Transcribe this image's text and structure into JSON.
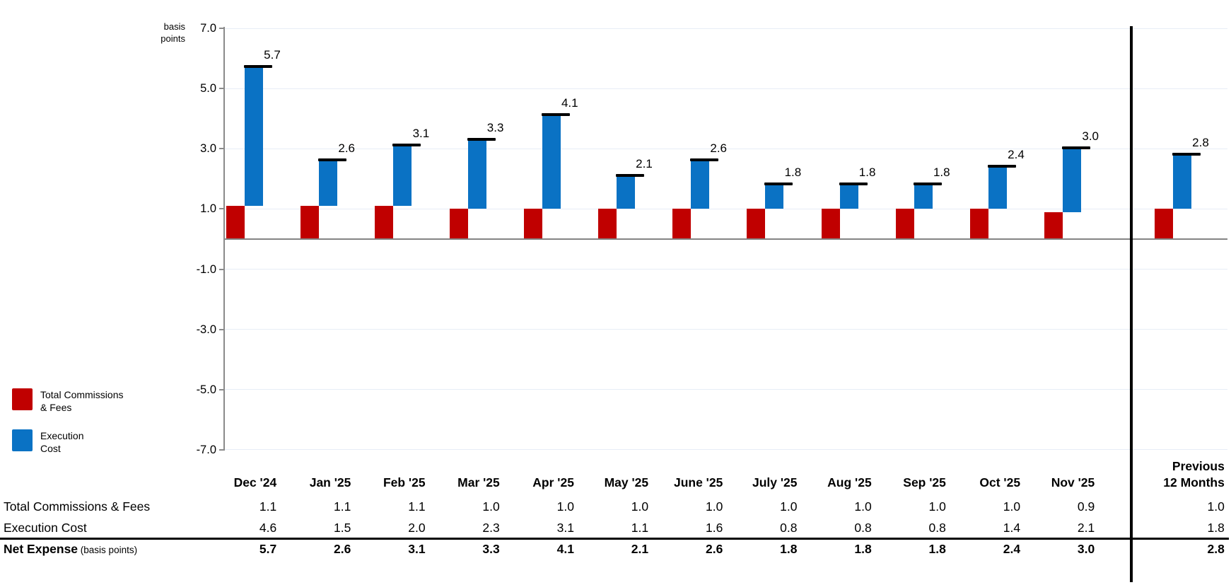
{
  "chart": {
    "unit_label_line1": "basis",
    "unit_label_line2": "points"
  },
  "legend": {
    "items": [
      {
        "line1": "Total Commissions",
        "line2": "& Fees",
        "color": "#c00000"
      },
      {
        "line1": "Execution",
        "line2": "Cost",
        "color": "#0a72c4"
      }
    ]
  },
  "chart_data": {
    "type": "bar",
    "subtype": "stacked-offset-columns-with-total-markers",
    "unit": "basis points",
    "categories": [
      "Dec '24",
      "Jan '25",
      "Feb '25",
      "Mar '25",
      "Apr '25",
      "May '25",
      "June '25",
      "July '25",
      "Aug '25",
      "Sep '25",
      "Oct '25",
      "Nov '25",
      "Previous 12 Months"
    ],
    "series": [
      {
        "name": "Total Commissions & Fees",
        "color": "#c00000",
        "values": [
          1.1,
          1.1,
          1.1,
          1.0,
          1.0,
          1.0,
          1.0,
          1.0,
          1.0,
          1.0,
          1.0,
          0.9,
          1.0
        ]
      },
      {
        "name": "Execution Cost",
        "color": "#0a72c4",
        "values": [
          4.6,
          1.5,
          2.0,
          2.3,
          3.1,
          1.1,
          1.6,
          0.8,
          0.8,
          0.8,
          1.4,
          2.1,
          1.8
        ]
      }
    ],
    "totals": [
      5.7,
      2.6,
      3.1,
      3.3,
      4.1,
      2.1,
      2.6,
      1.8,
      1.8,
      1.8,
      2.4,
      3.0,
      2.8
    ],
    "total_labels": [
      "5.7",
      "2.6",
      "3.1",
      "3.3",
      "4.1",
      "2.1",
      "2.6",
      "1.8",
      "1.8",
      "1.8",
      "2.4",
      "3.0",
      "2.8"
    ],
    "ytick_labels": [
      "7.0",
      "5.0",
      "3.0",
      "1.0",
      "-1.0",
      "-3.0",
      "-5.0",
      "-7.0"
    ],
    "ylim": [
      -7.0,
      7.0
    ],
    "grid": true,
    "legend_position": "bottom-left",
    "separator_before_last_category": true,
    "colors": {
      "gridline": "#e7edf6",
      "axis": "#8a8a8a",
      "zero_line": "#848484",
      "total_marker": "#000000",
      "separator": "#000000"
    }
  },
  "table": {
    "month_columns": [
      "Dec '24",
      "Jan '25",
      "Feb '25",
      "Mar '25",
      "Apr '25",
      "May '25",
      "June '25",
      "July '25",
      "Aug '25",
      "Sep '25",
      "Oct '25",
      "Nov '25"
    ],
    "last_column_header_line1": "Previous",
    "last_column_header_line2": "12 Months",
    "rows": [
      {
        "label": "Total Commissions & Fees",
        "label_note": "",
        "values": [
          "1.1",
          "1.1",
          "1.1",
          "1.0",
          "1.0",
          "1.0",
          "1.0",
          "1.0",
          "1.0",
          "1.0",
          "1.0",
          "0.9"
        ],
        "last": "1.0",
        "emphasis": false
      },
      {
        "label": "Execution Cost",
        "label_note": "",
        "values": [
          "4.6",
          "1.5",
          "2.0",
          "2.3",
          "3.1",
          "1.1",
          "1.6",
          "0.8",
          "0.8",
          "0.8",
          "1.4",
          "2.1"
        ],
        "last": "1.8",
        "emphasis": false
      },
      {
        "label": "Net Expense",
        "label_note": "(basis points)",
        "values": [
          "5.7",
          "2.6",
          "3.1",
          "3.3",
          "4.1",
          "2.1",
          "2.6",
          "1.8",
          "1.8",
          "1.8",
          "2.4",
          "3.0"
        ],
        "last": "2.8",
        "emphasis": true
      }
    ]
  }
}
